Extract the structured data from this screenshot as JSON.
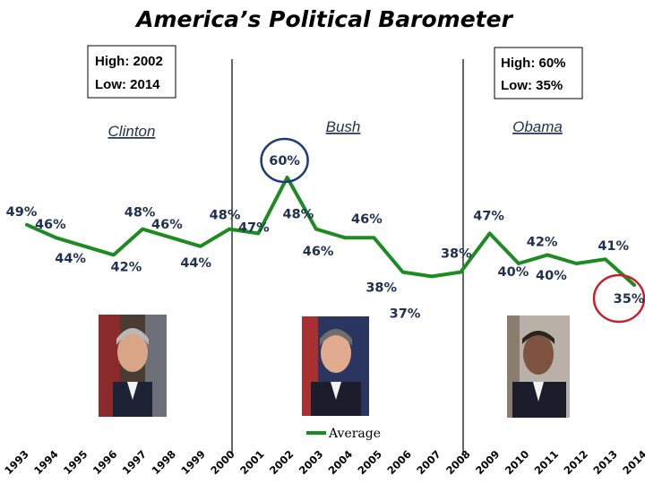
{
  "chart_data": {
    "type": "line",
    "title": "America’s Political Barometer",
    "series": [
      {
        "name": "Average",
        "color": "#1e8a22",
        "x": [
          "1993",
          "1994",
          "1995",
          "1996",
          "1997",
          "1998",
          "1999",
          "2000",
          "2001",
          "2002",
          "2003",
          "2004",
          "2005",
          "2006",
          "2007",
          "2008",
          "2009",
          "2010",
          "2011",
          "2012",
          "2013",
          "2014"
        ],
        "values": [
          49,
          46,
          44,
          42,
          48,
          46,
          44,
          48,
          47,
          60,
          48,
          46,
          46,
          38,
          37,
          38,
          47,
          40,
          42,
          40,
          41,
          35
        ]
      }
    ],
    "point_labels": [
      "49%",
      "46%",
      "44%",
      "42%",
      "48%",
      "46%",
      "44%",
      "48%",
      "47%",
      "60%",
      "48%",
      "46%",
      "46%",
      "38%",
      "37%",
      "38%",
      "47%",
      "40%",
      "42%",
      "40%",
      "41%",
      "35%"
    ],
    "eras": [
      {
        "name": "Clinton",
        "from": "1993",
        "to": "2000"
      },
      {
        "name": "Bush",
        "from": "2001",
        "to": "2008"
      },
      {
        "name": "Obama",
        "from": "2009",
        "to": "2014"
      }
    ],
    "annotations": {
      "left_box": [
        "High: 2002",
        "Low: 2014"
      ],
      "right_box": [
        "High: 60%",
        "Low: 35%"
      ],
      "circled": [
        {
          "label": "60%",
          "color": "#1f3a7a"
        },
        {
          "label": "35%",
          "color": "#c8202a"
        }
      ]
    },
    "legend": {
      "label": "Average",
      "position": "bottom-center"
    },
    "ylim": [
      30,
      65
    ],
    "xlabel": "",
    "ylabel": "",
    "grid": false
  },
  "photos": [
    {
      "name": "clinton",
      "icon": "clinton-portrait"
    },
    {
      "name": "bush",
      "icon": "bush-portrait"
    },
    {
      "name": "obama",
      "icon": "obama-portrait"
    }
  ],
  "colors": {
    "line": "#1e8a22",
    "label": "#1f3050",
    "divider": "#000000"
  }
}
